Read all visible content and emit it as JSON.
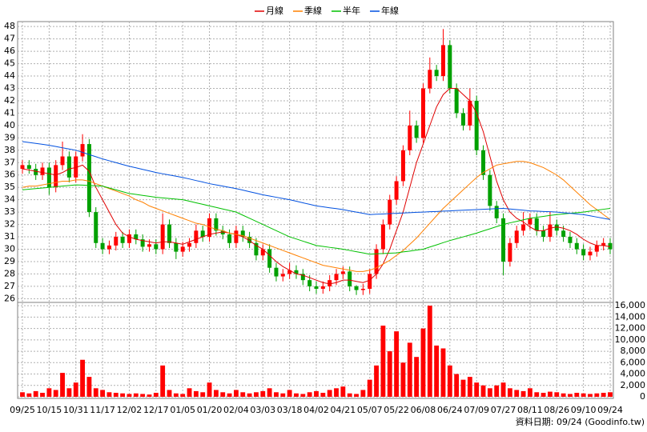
{
  "chart_data": {
    "type": "candlestick",
    "source": "資料日期: 09/24 (Goodinfo.tw)",
    "categories": [
      "09/25",
      null,
      null,
      null,
      "10/15",
      null,
      null,
      null,
      "10/31",
      null,
      null,
      null,
      "11/17",
      null,
      null,
      null,
      "12/02",
      null,
      null,
      null,
      "12/17",
      null,
      null,
      null,
      "01/05",
      null,
      null,
      null,
      "01/20",
      null,
      null,
      null,
      "02/04",
      null,
      null,
      null,
      "03/03",
      null,
      null,
      null,
      "03/18",
      null,
      null,
      null,
      "04/02",
      null,
      null,
      null,
      "04/21",
      null,
      null,
      null,
      "05/07",
      null,
      null,
      null,
      "05/22",
      null,
      null,
      null,
      "06/08",
      null,
      null,
      null,
      "06/24",
      null,
      null,
      null,
      "07/09",
      null,
      null,
      null,
      "07/27",
      null,
      null,
      null,
      "08/11",
      null,
      null,
      null,
      "08/26",
      null,
      null,
      null,
      "09/10",
      null,
      null,
      null,
      "09/24"
    ],
    "open": [
      36.5,
      36.8,
      36.5,
      36.0,
      36.6,
      35.0,
      36.8,
      37.5,
      35.8,
      37.5,
      38.5,
      33.0,
      30.5,
      30.0,
      30.3,
      31.0,
      30.5,
      31.2,
      30.8,
      30.2,
      30.4,
      30.0,
      32.0,
      30.5,
      29.8,
      30.2,
      30.5,
      31.5,
      31.0,
      32.5,
      31.5,
      31.2,
      30.5,
      31.5,
      31.0,
      30.5,
      29.5,
      30.0,
      28.5,
      27.8,
      28.0,
      28.3,
      28.0,
      27.5,
      27.0,
      26.8,
      27.0,
      27.5,
      28.0,
      28.2,
      27.0,
      26.7,
      26.8,
      28.0,
      30.0,
      32.0,
      34.0,
      35.5,
      38.0,
      40.0,
      39.0,
      43.0,
      44.5,
      44.0,
      46.5,
      43.0,
      41.0,
      40.0,
      42.0,
      38.0,
      36.0,
      33.5,
      32.5,
      29.0,
      30.5,
      31.5,
      32.0,
      32.5,
      31.5,
      31.0,
      32.0,
      31.5,
      31.0,
      30.5,
      30.0,
      29.5,
      29.8,
      30.3,
      30.5
    ],
    "high": [
      37.2,
      37.2,
      36.9,
      37.0,
      37.0,
      37.2,
      38.7,
      37.9,
      37.9,
      39.3,
      38.9,
      33.4,
      30.9,
      30.7,
      31.4,
      31.4,
      31.6,
      31.6,
      31.2,
      30.8,
      30.8,
      32.9,
      32.4,
      30.9,
      30.6,
      30.9,
      32.0,
      31.9,
      32.9,
      32.9,
      31.9,
      31.6,
      31.9,
      31.9,
      31.4,
      30.9,
      30.4,
      30.4,
      28.9,
      28.4,
      28.9,
      28.7,
      28.4,
      27.9,
      27.4,
      27.4,
      27.9,
      28.4,
      28.6,
      28.6,
      27.1,
      27.2,
      28.4,
      30.4,
      32.4,
      34.4,
      35.9,
      38.4,
      41.2,
      40.4,
      43.4,
      45.5,
      44.9,
      47.8,
      46.9,
      43.4,
      41.4,
      43.0,
      42.4,
      38.4,
      36.4,
      33.9,
      32.9,
      30.9,
      31.9,
      33.0,
      32.9,
      32.9,
      31.9,
      33.0,
      32.4,
      31.9,
      31.4,
      30.9,
      30.4,
      30.2,
      30.7,
      30.9,
      30.9
    ],
    "low": [
      36.1,
      36.1,
      35.6,
      35.6,
      34.4,
      34.6,
      36.4,
      35.4,
      35.4,
      37.1,
      32.6,
      30.1,
      29.6,
      29.6,
      29.9,
      30.1,
      30.1,
      30.4,
      29.8,
      29.8,
      29.6,
      29.6,
      30.1,
      29.2,
      29.4,
      29.8,
      30.1,
      30.6,
      30.6,
      31.1,
      30.8,
      30.1,
      30.1,
      30.6,
      30.1,
      29.1,
      29.1,
      28.1,
      27.4,
      27.4,
      27.6,
      27.6,
      27.1,
      26.6,
      26.4,
      26.4,
      26.6,
      27.1,
      27.6,
      26.6,
      26.3,
      26.3,
      26.4,
      27.6,
      29.6,
      31.6,
      33.6,
      35.1,
      37.6,
      38.6,
      38.6,
      42.6,
      43.6,
      43.6,
      42.6,
      40.6,
      39.6,
      39.6,
      37.6,
      35.6,
      33.1,
      32.1,
      27.9,
      28.6,
      30.1,
      31.1,
      31.6,
      31.1,
      30.6,
      30.6,
      31.1,
      30.6,
      30.1,
      29.6,
      29.1,
      29.1,
      29.4,
      29.9,
      29.6
    ],
    "close": [
      36.8,
      36.5,
      36.0,
      36.6,
      35.0,
      36.8,
      37.5,
      35.8,
      37.5,
      38.5,
      33.0,
      30.5,
      30.0,
      30.3,
      31.0,
      30.5,
      31.2,
      30.8,
      30.2,
      30.4,
      30.0,
      32.0,
      30.5,
      29.8,
      30.2,
      30.5,
      31.5,
      31.0,
      32.5,
      31.5,
      31.2,
      30.5,
      31.5,
      31.0,
      30.5,
      29.5,
      30.0,
      28.5,
      27.8,
      28.0,
      28.3,
      28.0,
      27.5,
      27.0,
      26.8,
      27.0,
      27.5,
      28.0,
      28.2,
      27.0,
      26.7,
      26.8,
      28.0,
      30.0,
      32.0,
      34.0,
      35.5,
      38.0,
      40.0,
      39.0,
      43.0,
      44.5,
      44.0,
      46.5,
      43.0,
      41.0,
      40.0,
      42.0,
      38.0,
      36.0,
      33.5,
      32.5,
      29.0,
      30.5,
      31.5,
      32.0,
      32.5,
      31.5,
      31.0,
      32.0,
      31.5,
      31.0,
      30.5,
      30.0,
      29.5,
      29.8,
      30.3,
      30.5,
      30.0
    ],
    "up_color": "#ff0000",
    "down_color": "#00a000",
    "series": [
      {
        "name": "月線",
        "color": "#e00000",
        "values": [
          36.5,
          36.4,
          36.3,
          36.2,
          36.1,
          36.0,
          36.2,
          36.5,
          36.6,
          36.8,
          36.3,
          35.0,
          34.0,
          33.0,
          32.0,
          31.3,
          31.0,
          30.8,
          30.7,
          30.6,
          30.5,
          30.6,
          30.6,
          30.5,
          30.4,
          30.6,
          30.8,
          31.0,
          31.2,
          31.3,
          31.4,
          31.3,
          31.2,
          31.0,
          30.7,
          30.3,
          30.0,
          29.5,
          29.0,
          28.6,
          28.3,
          28.0,
          27.9,
          27.7,
          27.5,
          27.3,
          27.2,
          27.3,
          27.5,
          27.5,
          27.4,
          27.3,
          27.5,
          28.0,
          28.8,
          30.0,
          31.5,
          33.0,
          35.0,
          37.0,
          38.5,
          40.0,
          41.5,
          42.5,
          43.0,
          43.0,
          42.5,
          42.0,
          41.0,
          39.5,
          37.5,
          35.5,
          34.0,
          33.0,
          32.5,
          32.2,
          31.8,
          31.5,
          31.5,
          31.7,
          31.8,
          31.7,
          31.5,
          31.2,
          30.8,
          30.5,
          30.3,
          30.3,
          30.2
        ]
      },
      {
        "name": "季線",
        "color": "#ff8000",
        "values": [
          35.0,
          35.1,
          35.1,
          35.2,
          35.3,
          35.4,
          35.5,
          35.5,
          35.6,
          35.6,
          35.5,
          35.3,
          35.1,
          34.9,
          34.7,
          34.5,
          34.3,
          34.0,
          33.8,
          33.5,
          33.3,
          33.1,
          32.9,
          32.7,
          32.5,
          32.3,
          32.1,
          32.0,
          31.8,
          31.6,
          31.5,
          31.3,
          31.2,
          31.1,
          30.9,
          30.7,
          30.5,
          30.3,
          30.1,
          29.9,
          29.7,
          29.5,
          29.3,
          29.1,
          28.9,
          28.7,
          28.6,
          28.5,
          28.4,
          28.3,
          28.2,
          28.2,
          28.3,
          28.5,
          28.8,
          29.1,
          29.5,
          29.9,
          30.4,
          30.9,
          31.5,
          32.1,
          32.7,
          33.3,
          33.8,
          34.3,
          34.8,
          35.3,
          35.8,
          36.2,
          36.5,
          36.8,
          36.9,
          37.0,
          37.1,
          37.1,
          37.0,
          36.8,
          36.6,
          36.3,
          36.0,
          35.6,
          35.1,
          34.6,
          34.1,
          33.6,
          33.2,
          32.8,
          32.4
        ]
      },
      {
        "name": "半年",
        "color": "#00c000",
        "values": [
          34.8,
          34.85,
          34.9,
          34.95,
          35.0,
          35.05,
          35.1,
          35.15,
          35.2,
          35.18,
          35.15,
          35.13,
          35.1,
          34.95,
          34.8,
          34.65,
          34.5,
          34.43,
          34.35,
          34.28,
          34.2,
          34.15,
          34.1,
          34.05,
          34.0,
          33.88,
          33.75,
          33.63,
          33.5,
          33.38,
          33.25,
          33.13,
          33.0,
          32.75,
          32.5,
          32.25,
          32.0,
          31.75,
          31.5,
          31.25,
          31.0,
          30.83,
          30.65,
          30.48,
          30.3,
          30.23,
          30.15,
          30.08,
          30.0,
          29.9,
          29.8,
          29.7,
          29.6,
          29.63,
          29.65,
          29.68,
          29.7,
          29.78,
          29.85,
          29.93,
          30.0,
          30.18,
          30.35,
          30.53,
          30.7,
          30.85,
          31.0,
          31.15,
          31.3,
          31.48,
          31.65,
          31.83,
          32.0,
          32.13,
          32.25,
          32.38,
          32.5,
          32.58,
          32.65,
          32.73,
          32.8,
          32.85,
          32.9,
          32.95,
          33.0,
          33.08,
          33.15,
          33.23,
          33.3
        ]
      },
      {
        "name": "年線",
        "color": "#0050e0",
        "values": [
          38.7,
          38.63,
          38.55,
          38.48,
          38.4,
          38.3,
          38.2,
          38.1,
          38.0,
          37.83,
          37.65,
          37.48,
          37.3,
          37.15,
          37.0,
          36.85,
          36.7,
          36.58,
          36.45,
          36.33,
          36.2,
          36.1,
          36.0,
          35.9,
          35.8,
          35.68,
          35.55,
          35.43,
          35.3,
          35.2,
          35.1,
          35.0,
          34.9,
          34.78,
          34.65,
          34.53,
          34.4,
          34.3,
          34.2,
          34.1,
          34.0,
          33.88,
          33.75,
          33.63,
          33.5,
          33.43,
          33.35,
          33.28,
          33.2,
          33.1,
          33.0,
          32.9,
          32.8,
          32.83,
          32.85,
          32.88,
          32.9,
          32.93,
          32.95,
          32.98,
          33.0,
          33.03,
          33.05,
          33.08,
          33.1,
          33.13,
          33.15,
          33.18,
          33.2,
          33.23,
          33.25,
          33.28,
          33.3,
          33.25,
          33.2,
          33.15,
          33.1,
          33.08,
          33.05,
          33.03,
          33.0,
          32.95,
          32.9,
          32.85,
          32.8,
          32.7,
          32.6,
          32.5,
          32.4
        ]
      }
    ],
    "volume": {
      "color": "#ff0000",
      "values": [
        800,
        600,
        1000,
        700,
        1500,
        1200,
        4200,
        1500,
        2500,
        6500,
        3500,
        1500,
        1200,
        800,
        700,
        600,
        500,
        600,
        500,
        400,
        700,
        5500,
        1200,
        600,
        500,
        1500,
        1000,
        800,
        2500,
        1200,
        800,
        600,
        1200,
        800,
        600,
        800,
        1000,
        1500,
        800,
        600,
        1200,
        600,
        500,
        800,
        1000,
        700,
        1200,
        1500,
        1800,
        600,
        500,
        1200,
        3000,
        5500,
        12500,
        8000,
        11500,
        6000,
        9500,
        7000,
        12000,
        16000,
        9000,
        8500,
        5500,
        4000,
        3000,
        3500,
        2500,
        2000,
        1500,
        2000,
        2500,
        1500,
        1200,
        1000,
        1500,
        800,
        700,
        900,
        800,
        600,
        500,
        700,
        600,
        500,
        600,
        700,
        800
      ]
    },
    "ylim": [
      25.7,
      48.4
    ],
    "yticks": [
      26,
      27,
      28,
      29,
      30,
      31,
      32,
      33,
      34,
      35,
      36,
      37,
      38,
      39,
      40,
      41,
      42,
      43,
      44,
      45,
      46,
      47,
      48
    ],
    "y2lim": [
      0,
      16300
    ],
    "y2ticks": [
      0,
      {
        "value": 2000,
        "label": "2,000"
      },
      {
        "value": 4000,
        "label": "4,000"
      },
      {
        "value": 6000,
        "label": "6,000"
      },
      {
        "value": 8000,
        "label": "8,000"
      },
      {
        "value": 10000,
        "label": "10,000"
      },
      {
        "value": 12000,
        "label": "12,000"
      },
      {
        "value": 14000,
        "label": "14,000"
      },
      {
        "value": 16000,
        "label": "16,000"
      }
    ],
    "grid": true
  }
}
